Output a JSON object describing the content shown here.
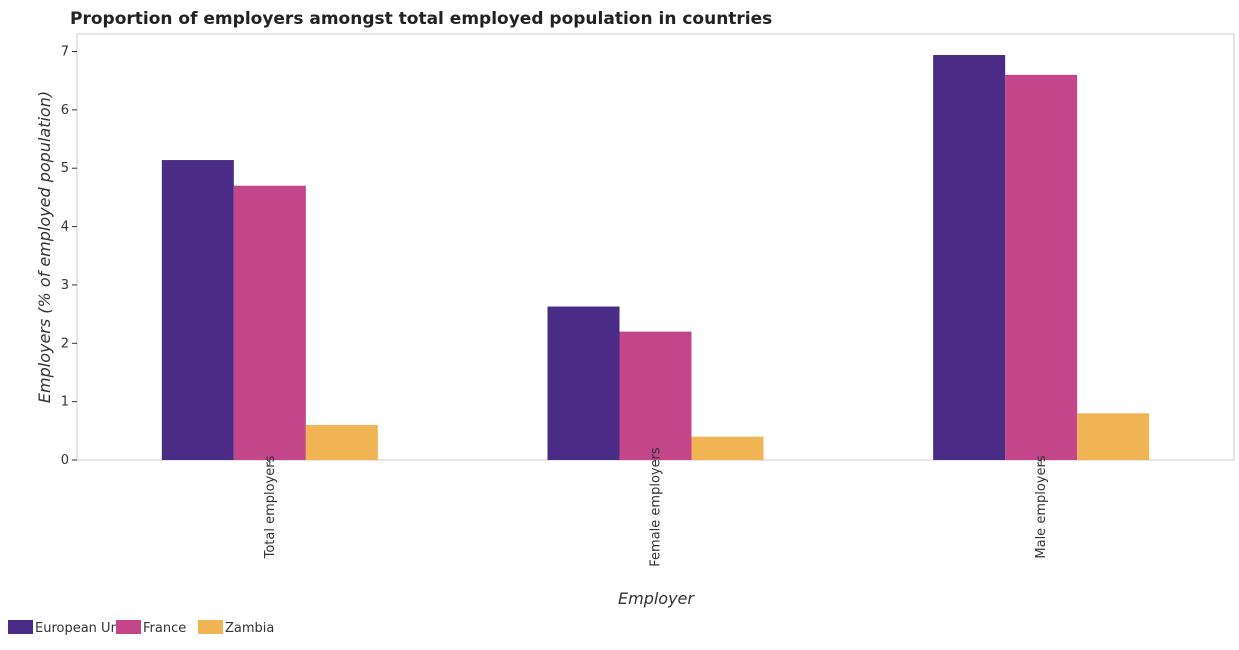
{
  "chart_data": {
    "type": "bar",
    "title": "Proportion of employers amongst total employed population in countries",
    "xlabel": "Employer",
    "ylabel": "Employers (% of employed population)",
    "categories": [
      "Total employers",
      "Female employers",
      "Male employers"
    ],
    "series": [
      {
        "name": "European Union",
        "color": "#4a2c86",
        "values": [
          5.14,
          2.63,
          6.94
        ]
      },
      {
        "name": "France",
        "color": "#c4468a",
        "values": [
          4.7,
          2.2,
          6.6
        ]
      },
      {
        "name": "Zambia",
        "color": "#f1b455",
        "values": [
          0.6,
          0.4,
          0.8
        ]
      }
    ],
    "ylim": [
      0,
      7.3
    ],
    "yticks": [
      "0",
      "1",
      "2",
      "3",
      "4",
      "5",
      "6",
      "7"
    ],
    "grid": false,
    "legend_position": "bottom-left"
  }
}
